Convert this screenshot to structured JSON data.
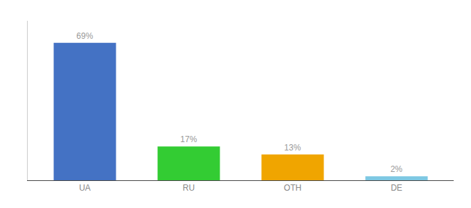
{
  "chart_data": {
    "type": "bar",
    "categories": [
      "UA",
      "RU",
      "OTH",
      "DE"
    ],
    "values": [
      69,
      17,
      13,
      2
    ],
    "value_labels": [
      "69%",
      "17%",
      "13%",
      "2%"
    ],
    "colors": [
      "#4472c4",
      "#33cc33",
      "#f0a500",
      "#7ec8e3"
    ],
    "ylim": [
      0,
      80
    ],
    "data_labels": true,
    "tick_labels": "x",
    "grid": false
  }
}
